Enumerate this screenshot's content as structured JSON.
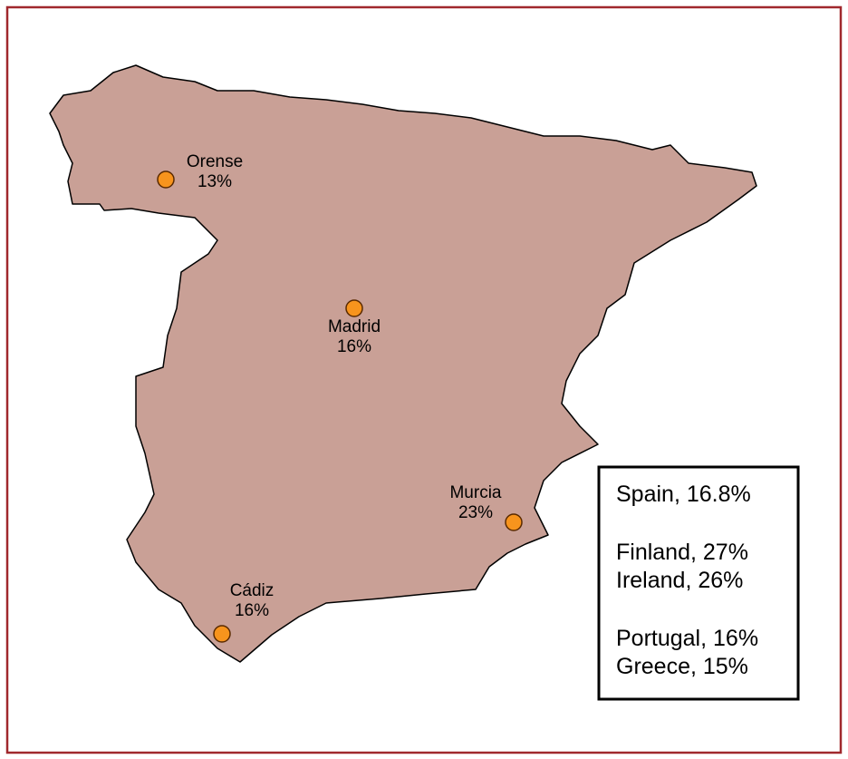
{
  "cities": [
    {
      "name": "Orense",
      "value": "13%"
    },
    {
      "name": "Madrid",
      "value": "16%"
    },
    {
      "name": "Murcia",
      "value": "23%"
    },
    {
      "name": "Cádiz",
      "value": "16%"
    }
  ],
  "legend": {
    "groups": [
      [
        "Spain, 16.8%"
      ],
      [
        "Finland, 27%",
        "Ireland, 26%"
      ],
      [
        "Portugal, 16%",
        "Greece, 15%"
      ]
    ]
  }
}
